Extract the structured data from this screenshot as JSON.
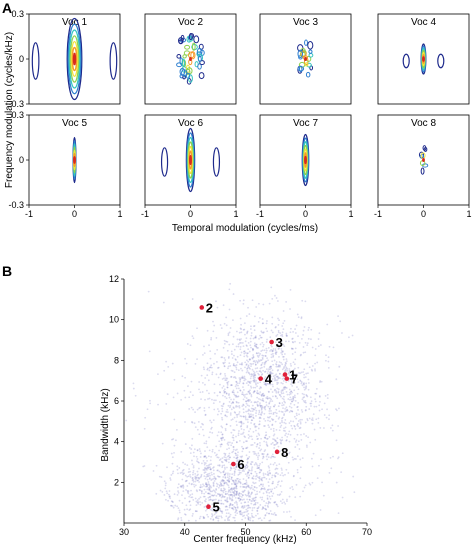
{
  "chart_data": [
    {
      "type": "heatmap",
      "panel_label": "A",
      "xlabel": "Temporal modulation (cycles/ms)",
      "ylabel": "Frequency modulation (cycles/kHz)",
      "x_ticks": [
        "-1",
        "0",
        "1"
      ],
      "y_ticks": [
        "0.3",
        "0",
        "-0.3"
      ],
      "xlim": [
        -1,
        1
      ],
      "ylim": [
        -0.3,
        0.3
      ],
      "colors": [
        "#1e2a8c",
        "#2e7fd0",
        "#34c6c0",
        "#8fd14f",
        "#f2e33a",
        "#f59a2a",
        "#d82a1e"
      ],
      "panels": [
        {
          "title": "Voc 1",
          "style": "blob",
          "wx": 0.16,
          "wy": 0.27,
          "lobes": 0.45
        },
        {
          "title": "Voc 2",
          "style": "speckle",
          "wx": 0.26,
          "wy": 0.16,
          "lobes": 0
        },
        {
          "title": "Voc 3",
          "style": "speckle-small",
          "wx": 0.14,
          "wy": 0.12,
          "lobes": 0
        },
        {
          "title": "Voc 4",
          "style": "blob",
          "wx": 0.05,
          "wy": 0.1,
          "lobes": 0.2
        },
        {
          "title": "Voc 5",
          "style": "blob",
          "wx": 0.03,
          "wy": 0.15,
          "lobes": 0
        },
        {
          "title": "Voc 6",
          "style": "blob",
          "wx": 0.09,
          "wy": 0.21,
          "lobes": 0.3
        },
        {
          "title": "Voc 7",
          "style": "blob",
          "wx": 0.07,
          "wy": 0.17,
          "lobes": 0
        },
        {
          "title": "Voc 8",
          "style": "speckle-tiny",
          "wx": 0.05,
          "wy": 0.08,
          "lobes": 0.12
        }
      ]
    },
    {
      "type": "scatter",
      "panel_label": "B",
      "xlabel": "Center frequency (kHz)",
      "ylabel": "Bandwidth (kHz)",
      "xlim": [
        30,
        70
      ],
      "ylim": [
        0,
        12
      ],
      "x_ticks": [
        30,
        40,
        50,
        60,
        70
      ],
      "y_ticks": [
        2,
        4,
        6,
        8,
        10,
        12
      ],
      "background_color": "#5a5ab8",
      "highlight_color": "#e0203a",
      "points": [
        {
          "label": "1",
          "x": 56.5,
          "y": 7.3
        },
        {
          "label": "2",
          "x": 42.8,
          "y": 10.6
        },
        {
          "label": "3",
          "x": 54.3,
          "y": 8.9
        },
        {
          "label": "4",
          "x": 52.5,
          "y": 7.1
        },
        {
          "label": "5",
          "x": 43.9,
          "y": 0.8
        },
        {
          "label": "6",
          "x": 48.0,
          "y": 2.9
        },
        {
          "label": "7",
          "x": 56.8,
          "y": 7.1
        },
        {
          "label": "8",
          "x": 55.2,
          "y": 3.5
        }
      ]
    }
  ]
}
